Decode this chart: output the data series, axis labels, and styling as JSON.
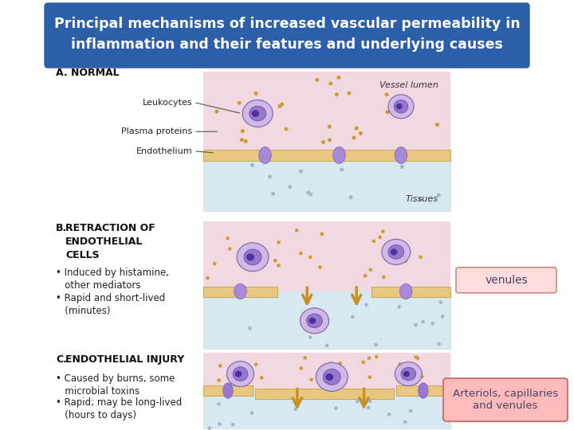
{
  "title_line1": "Principal mechanisms of increased vascular permeability in",
  "title_line2": "inflammation and their features and underlying causes",
  "title_bg_color": "#2B5FA8",
  "title_text_color": "#FFFFFF",
  "title_fontsize": 12.5,
  "bg_color": "#FFFFFF",
  "section_A_label": "A. NORMAL",
  "section_B_label_bold": "B. RETRACTION OF\nENDOTHELIAL\nCELLS",
  "section_C_label_bold": "C. ENDOTHELIAL INJURY",
  "section_B_bullets": [
    "• Induced by histamine,\n   other mediators",
    "• Rapid and short-lived\n   (minutes)"
  ],
  "section_C_bullets": [
    "• Caused by burns, some\n   microbial toxins",
    "• Rapid; may be long-lived\n   (hours to days)"
  ],
  "leukocytes_label": "Leukocytes",
  "plasma_label": "Plasma proteins",
  "endothelium_label": "Endothelium",
  "vessel_lumen_label": "Vessel lumen",
  "tissues_label": "Tissues",
  "venules_box_text": "venules",
  "venules_box_bg": "#FFDDDD",
  "venules_box_border": "#CC8888",
  "venules_box_text_color": "#444466",
  "arteriols_box_text": "Arteriols, capillaries\nand venules",
  "arteriols_box_bg": "#FFBBBB",
  "arteriols_box_border": "#CC7777",
  "arteriols_box_text_color": "#444466",
  "lumen_color": "#F2D8E0",
  "tissue_color": "#D8E8F0",
  "wall_color": "#E8C880",
  "wall_edge_color": "#C8A850",
  "nuc_color": "#9878C8",
  "cell_body_color": "#D0B8E8",
  "cell_edge_color": "#8060A8",
  "dot_lumen_color": "#C8A030",
  "dot_tissue_color": "#A0B8C8",
  "arrow_color": "#C89020",
  "label_fontsize": 8.5,
  "bullet_fontsize": 8.5,
  "section_label_fontsize": 8.5,
  "annot_fontsize": 8.0
}
